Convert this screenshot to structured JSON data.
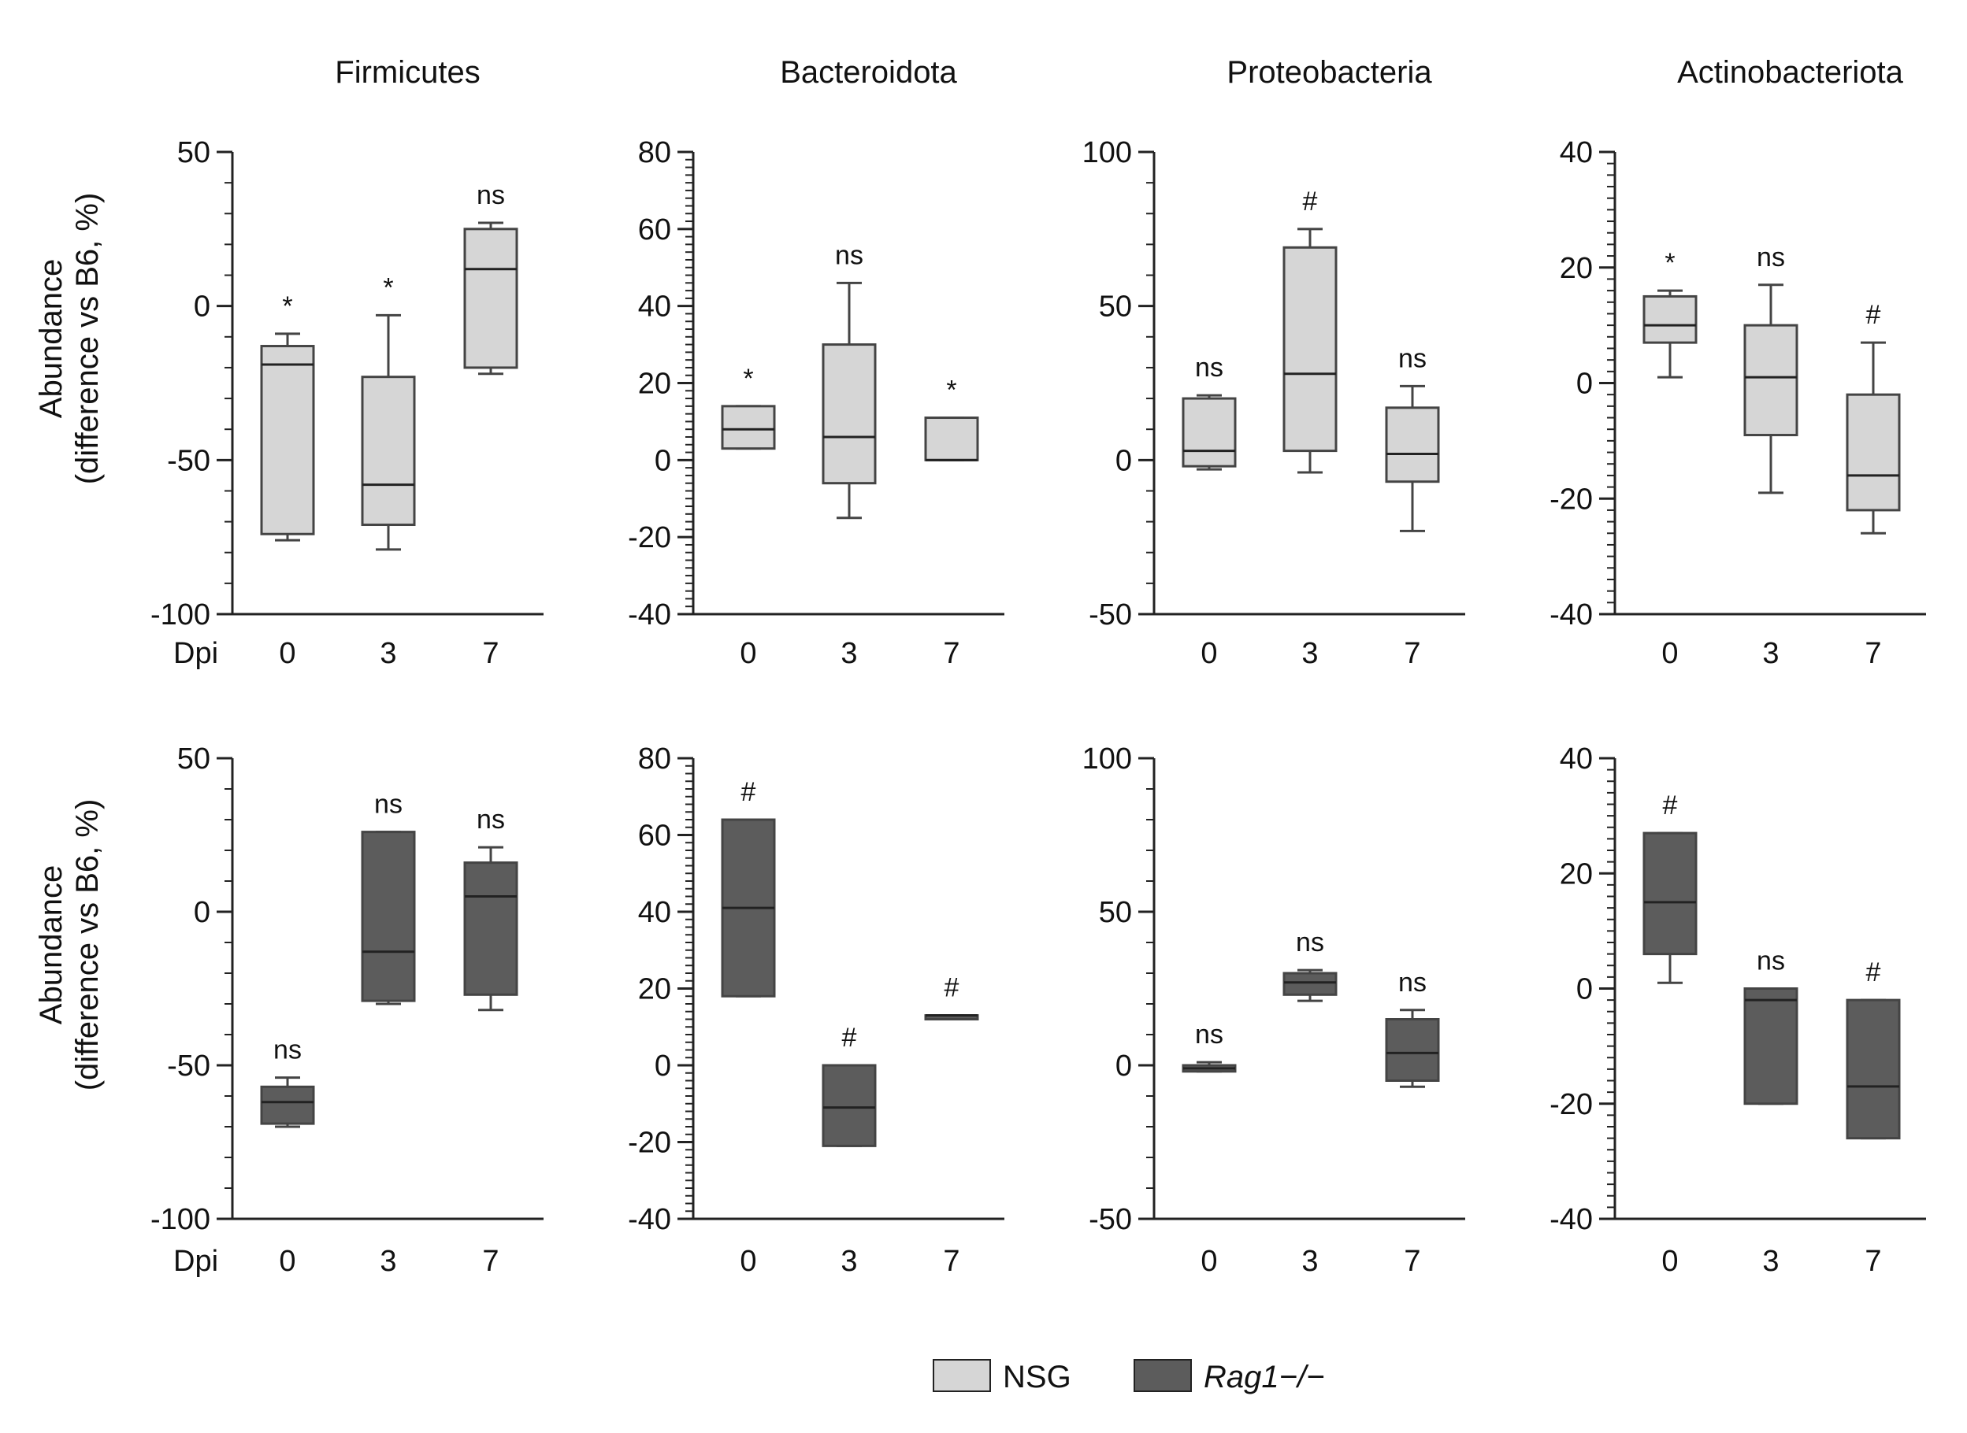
{
  "ylabel": {
    "line1": "Abundance",
    "line2": "(difference vs B6, %)"
  },
  "dpi_label": "Dpi",
  "colors": {
    "NSG": "#d6d6d6",
    "Rag1": "#5c5c5c",
    "axis": "#222222",
    "whisker": "#444444"
  },
  "legend": [
    {
      "key": "NSG",
      "label": "NSG",
      "italic": false
    },
    {
      "key": "Rag1",
      "label": "Rag1−/−",
      "italic": true
    }
  ],
  "chart_data": [
    {
      "type": "box",
      "group": "NSG",
      "title": "Firmicutes",
      "ylim": [
        -100,
        50
      ],
      "major": 50,
      "minor": 10,
      "yticks": [
        "50",
        "0",
        "-50",
        "-100"
      ],
      "categories": [
        "0",
        "3",
        "7"
      ],
      "boxes": [
        {
          "min": -76,
          "q1": -74,
          "median": -19,
          "q3": -13,
          "max": -9,
          "sig": "*"
        },
        {
          "min": -79,
          "q1": -71,
          "median": -58,
          "q3": -23,
          "max": -3,
          "sig": "*"
        },
        {
          "min": -22,
          "q1": -20,
          "median": 12,
          "q3": 25,
          "max": 27,
          "sig": "ns"
        }
      ]
    },
    {
      "type": "box",
      "group": "NSG",
      "title": "Bacteroidota",
      "ylim": [
        -40,
        80
      ],
      "major": 20,
      "minor": 2,
      "yticks": [
        "80",
        "60",
        "40",
        "20",
        "0",
        "-20",
        "-40"
      ],
      "categories": [
        "0",
        "3",
        "7"
      ],
      "boxes": [
        {
          "min": 3,
          "q1": 3,
          "median": 8,
          "q3": 14,
          "max": 14,
          "sig": "*"
        },
        {
          "min": -15,
          "q1": -6,
          "median": 6,
          "q3": 30,
          "max": 46,
          "sig": "ns"
        },
        {
          "min": 0,
          "q1": 0,
          "median": 0,
          "q3": 11,
          "max": 11,
          "sig": "*"
        }
      ]
    },
    {
      "type": "box",
      "group": "NSG",
      "title": "Proteobacteria",
      "ylim": [
        -50,
        100
      ],
      "major": 50,
      "minor": 10,
      "yticks": [
        "100",
        "50",
        "0",
        "-50"
      ],
      "categories": [
        "0",
        "3",
        "7"
      ],
      "boxes": [
        {
          "min": -3,
          "q1": -2,
          "median": 3,
          "q3": 20,
          "max": 21,
          "sig": "ns"
        },
        {
          "min": -4,
          "q1": 3,
          "median": 28,
          "q3": 69,
          "max": 75,
          "sig": "#"
        },
        {
          "min": -23,
          "q1": -7,
          "median": 2,
          "q3": 17,
          "max": 24,
          "sig": "ns"
        }
      ]
    },
    {
      "type": "box",
      "group": "NSG",
      "title": "Actinobacteriota",
      "ylim": [
        -40,
        40
      ],
      "major": 20,
      "minor": 2,
      "yticks": [
        "40",
        "20",
        "0",
        "-20",
        "-40"
      ],
      "categories": [
        "0",
        "3",
        "7"
      ],
      "boxes": [
        {
          "min": 1,
          "q1": 7,
          "median": 10,
          "q3": 15,
          "max": 16,
          "sig": "*"
        },
        {
          "min": -19,
          "q1": -9,
          "median": 1,
          "q3": 10,
          "max": 17,
          "sig": "ns"
        },
        {
          "min": -26,
          "q1": -22,
          "median": -16,
          "q3": -2,
          "max": 7,
          "sig": "#"
        }
      ]
    },
    {
      "type": "box",
      "group": "Rag1",
      "title": "Firmicutes",
      "ylim": [
        -100,
        50
      ],
      "major": 50,
      "minor": 10,
      "yticks": [
        "50",
        "0",
        "-50",
        "-100"
      ],
      "categories": [
        "0",
        "3",
        "7"
      ],
      "boxes": [
        {
          "min": -70,
          "q1": -69,
          "median": -62,
          "q3": -57,
          "max": -54,
          "sig": "ns"
        },
        {
          "min": -30,
          "q1": -29,
          "median": -13,
          "q3": 26,
          "max": 26,
          "sig": "ns"
        },
        {
          "min": -32,
          "q1": -27,
          "median": 5,
          "q3": 16,
          "max": 21,
          "sig": "ns"
        }
      ]
    },
    {
      "type": "box",
      "group": "Rag1",
      "title": "Bacteroidota",
      "ylim": [
        -40,
        80
      ],
      "major": 20,
      "minor": 2,
      "yticks": [
        "80",
        "60",
        "40",
        "20",
        "0",
        "-20",
        "-40"
      ],
      "categories": [
        "0",
        "3",
        "7"
      ],
      "boxes": [
        {
          "min": 18,
          "q1": 18,
          "median": 41,
          "q3": 64,
          "max": 64,
          "sig": "#"
        },
        {
          "min": -21,
          "q1": -21,
          "median": -11,
          "q3": 0,
          "max": 0,
          "sig": "#"
        },
        {
          "min": 12,
          "q1": 12,
          "median": 13,
          "q3": 13,
          "max": 13,
          "sig": "#"
        }
      ]
    },
    {
      "type": "box",
      "group": "Rag1",
      "title": "Proteobacteria",
      "ylim": [
        -50,
        100
      ],
      "major": 50,
      "minor": 10,
      "yticks": [
        "100",
        "50",
        "0",
        "-50"
      ],
      "categories": [
        "0",
        "3",
        "7"
      ],
      "boxes": [
        {
          "min": -2,
          "q1": -2,
          "median": -1,
          "q3": 0,
          "max": 1,
          "sig": "ns"
        },
        {
          "min": 21,
          "q1": 23,
          "median": 27,
          "q3": 30,
          "max": 31,
          "sig": "ns"
        },
        {
          "min": -7,
          "q1": -5,
          "median": 4,
          "q3": 15,
          "max": 18,
          "sig": "ns"
        }
      ]
    },
    {
      "type": "box",
      "group": "Rag1",
      "title": "Actinobacteriota",
      "ylim": [
        -40,
        40
      ],
      "major": 20,
      "minor": 2,
      "yticks": [
        "40",
        "20",
        "0",
        "-20",
        "-40"
      ],
      "categories": [
        "0",
        "3",
        "7"
      ],
      "boxes": [
        {
          "min": 1,
          "q1": 6,
          "median": 15,
          "q3": 27,
          "max": 27,
          "sig": "#"
        },
        {
          "min": -20,
          "q1": -20,
          "median": -2,
          "q3": 0,
          "max": 0,
          "sig": "ns"
        },
        {
          "min": -26,
          "q1": -26,
          "median": -17,
          "q3": -2,
          "max": -2,
          "sig": "#"
        }
      ]
    }
  ]
}
